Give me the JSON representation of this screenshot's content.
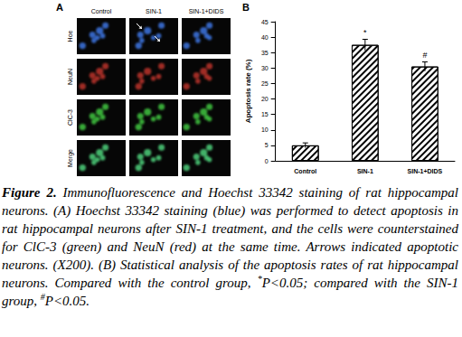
{
  "panel_a": {
    "label": "A",
    "columns": [
      "Control",
      "SIN-1",
      "SIN-1+DIDS"
    ],
    "rows": [
      "Hoe",
      "NeuN",
      "ClC-3",
      "Merge"
    ]
  },
  "chart_data": {
    "type": "bar",
    "title": "B",
    "categories": [
      "Control",
      "SIN-1",
      "SIN-1+DIDS"
    ],
    "values": [
      5,
      37.5,
      30.5
    ],
    "errors": [
      0.8,
      1.8,
      1.5
    ],
    "annotations": [
      {
        "category": "SIN-1",
        "text": "*"
      },
      {
        "category": "SIN-1+DIDS",
        "text": "#"
      }
    ],
    "ylabel": "Apoptosis rate (%)",
    "ylim": [
      0,
      45
    ],
    "yticks": [
      0,
      5,
      10,
      15,
      20,
      25,
      30,
      35,
      40,
      45
    ],
    "color": "#ffffff",
    "grid": false
  },
  "caption": {
    "label": "Figure 2.",
    "segments": [
      {
        "text": " Immunofluorescence and Hoechst 33342 staining of rat hippocampal neurons. (A) Hoechst 33342 staining (blue) was performed to detect apoptosis in rat hippocampal neurons after SIN-1 treatment, and the cells were counterstained for ClC-3 (green) and NeuN (red) at the same time. Arrows indicated apoptotic neurons. (X200). (B) Statistical analysis of the apoptosis rates of rat hippocampal neurons. Compared with the control group, "
      },
      {
        "text": "*",
        "sup": true
      },
      {
        "text": "P<0.05; compared with the SIN-1 group, "
      },
      {
        "text": "#",
        "sup": true
      },
      {
        "text": "P<0.05."
      }
    ]
  }
}
